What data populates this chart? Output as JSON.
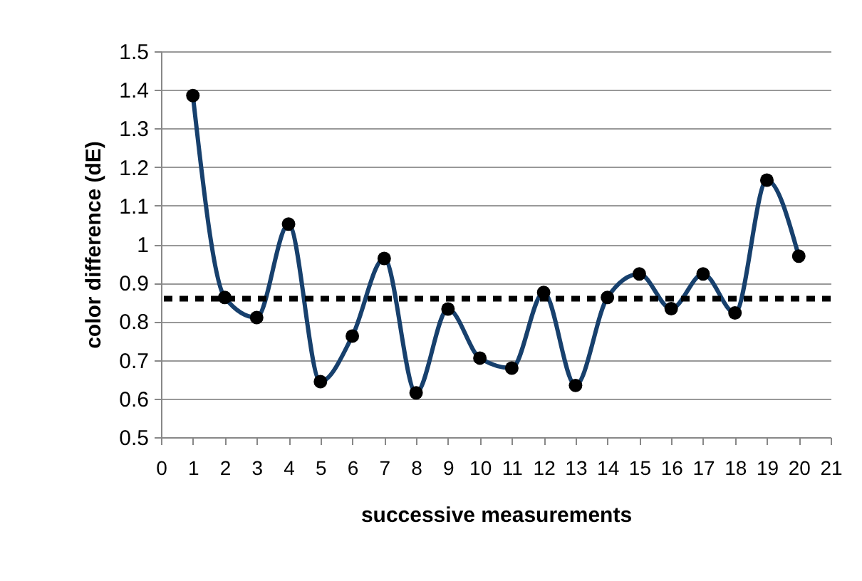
{
  "chart_data": {
    "type": "line",
    "xlabel": "successive measurements",
    "ylabel": "color difference (dE)",
    "x": [
      1,
      2,
      3,
      4,
      5,
      6,
      7,
      8,
      9,
      10,
      11,
      12,
      13,
      14,
      15,
      16,
      17,
      18,
      19,
      20
    ],
    "series": [
      {
        "color": "#17406d",
        "values": [
          1.385,
          0.862,
          0.81,
          1.052,
          0.644,
          0.762,
          0.963,
          0.615,
          0.832,
          0.705,
          0.679,
          0.875,
          0.634,
          0.862,
          0.923,
          0.833,
          0.923,
          0.822,
          1.166,
          0.969
        ]
      }
    ],
    "xlim": [
      0,
      21
    ],
    "xticks": [
      0,
      1,
      2,
      3,
      4,
      5,
      6,
      7,
      8,
      9,
      10,
      11,
      12,
      13,
      14,
      15,
      16,
      17,
      18,
      19,
      20,
      21
    ],
    "ylim": [
      0.5,
      1.5
    ],
    "yticks": [
      0.5,
      0.6,
      0.7,
      0.8,
      0.9,
      1,
      1.1,
      1.2,
      1.3,
      1.4,
      1.5
    ],
    "grid": "y",
    "marker": "circle",
    "line_style": "solid",
    "ref_lines": [
      {
        "axis": "y",
        "value": 0.859,
        "color": "#000000",
        "line_style": "dashed"
      }
    ]
  }
}
